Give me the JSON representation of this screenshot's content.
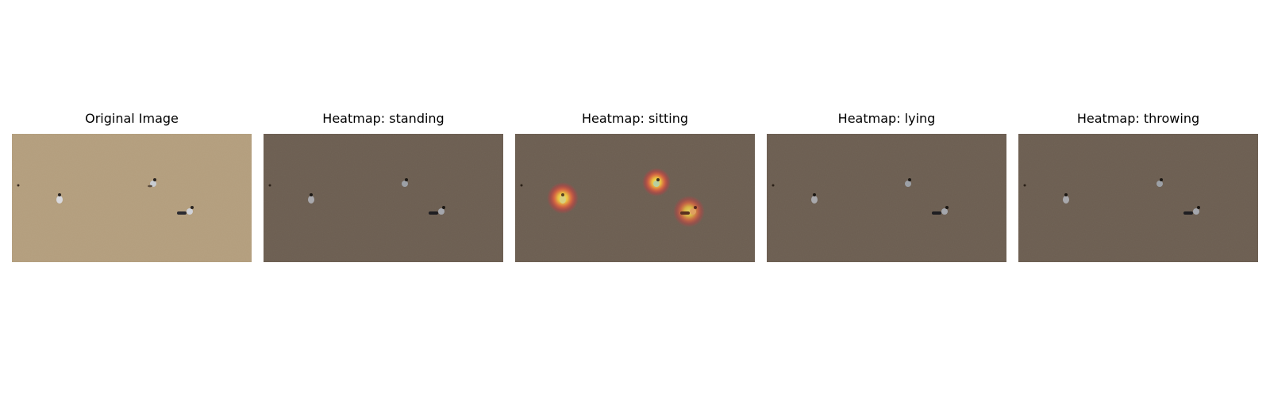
{
  "panels": [
    {
      "title": "Original Image",
      "dimmed": false,
      "heat_spots": []
    },
    {
      "title": "Heatmap: standing",
      "dimmed": true,
      "heat_spots": []
    },
    {
      "title": "Heatmap: sitting",
      "dimmed": true,
      "heat_spots": [
        "left-person",
        "center-person",
        "right-person"
      ]
    },
    {
      "title": "Heatmap: lying",
      "dimmed": true,
      "heat_spots": []
    },
    {
      "title": "Heatmap: throwing",
      "dimmed": true,
      "heat_spots": []
    }
  ],
  "colors": {
    "ground": "#b39d7c",
    "ground_dim": "#6b5d50",
    "heat_core": "#ffe45a",
    "heat_mid": "#ff6a3a",
    "heat_edge": "#e8303a"
  }
}
